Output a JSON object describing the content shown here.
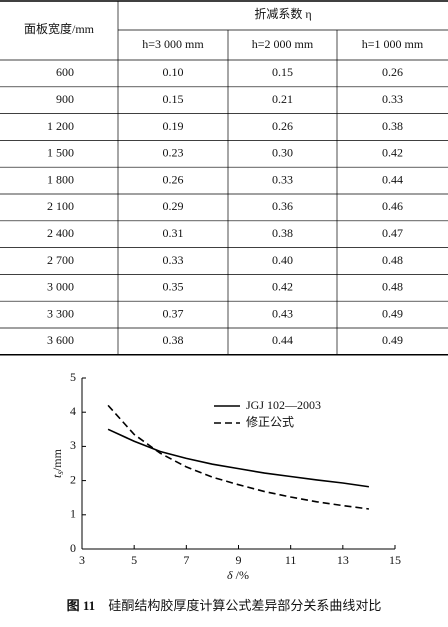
{
  "table": {
    "header": {
      "width_col": "面板宽度/mm",
      "group": "折减系数 η",
      "sub": [
        "h=3 000 mm",
        "h=2 000 mm",
        "h=1 000 mm"
      ]
    },
    "rows": [
      [
        "600",
        "0.10",
        "0.15",
        "0.26"
      ],
      [
        "900",
        "0.15",
        "0.21",
        "0.33"
      ],
      [
        "1 200",
        "0.19",
        "0.26",
        "0.38"
      ],
      [
        "1 500",
        "0.23",
        "0.30",
        "0.42"
      ],
      [
        "1 800",
        "0.26",
        "0.33",
        "0.44"
      ],
      [
        "2 100",
        "0.29",
        "0.36",
        "0.46"
      ],
      [
        "2 400",
        "0.31",
        "0.38",
        "0.47"
      ],
      [
        "2 700",
        "0.33",
        "0.40",
        "0.48"
      ],
      [
        "3 000",
        "0.35",
        "0.42",
        "0.48"
      ],
      [
        "3 300",
        "0.37",
        "0.43",
        "0.49"
      ],
      [
        "3 600",
        "0.38",
        "0.44",
        "0.49"
      ]
    ]
  },
  "chart_data": {
    "type": "line",
    "x_label": [
      "δ",
      " /%"
    ],
    "y_label": [
      "t",
      "s",
      "/mm"
    ],
    "xlim": [
      3,
      15
    ],
    "xticks": [
      3,
      5,
      7,
      9,
      11,
      13,
      15
    ],
    "ylim": [
      0,
      5
    ],
    "yticks": [
      0,
      1,
      2,
      3,
      4,
      5
    ],
    "series": [
      {
        "name": "JGJ 102—2003",
        "color": "#000000",
        "line_style": "solid",
        "x": [
          4,
          5,
          6,
          7,
          8,
          9,
          10,
          11,
          12,
          13,
          14
        ],
        "values": [
          3.5,
          3.15,
          2.85,
          2.65,
          2.48,
          2.35,
          2.22,
          2.12,
          2.02,
          1.93,
          1.82
        ]
      },
      {
        "name": "修正公式",
        "color": "#000000",
        "line_style": "dashed",
        "x": [
          4,
          5,
          6,
          7,
          8,
          9,
          10,
          11,
          12,
          13,
          14
        ],
        "values": [
          4.2,
          3.35,
          2.8,
          2.4,
          2.1,
          1.88,
          1.68,
          1.52,
          1.38,
          1.27,
          1.17
        ]
      }
    ]
  },
  "caption": {
    "label": "图 11",
    "text": "硅酮结构胶厚度计算公式差异部分关系曲线对比"
  }
}
